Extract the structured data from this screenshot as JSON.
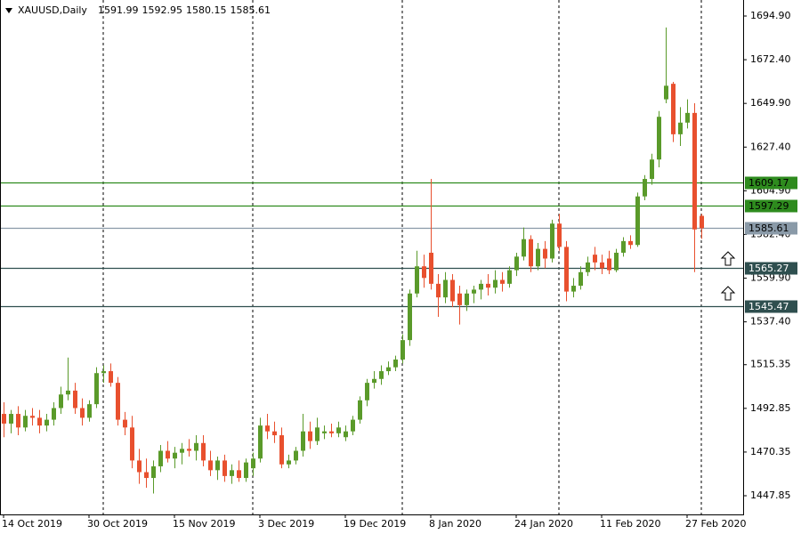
{
  "chart_data": {
    "type": "candlestick",
    "title": "XAUUSD,Daily",
    "up_color": "#5a9a2a",
    "down_color": "#e8502e",
    "grid": false,
    "ylim": [
      1438.23,
      1703.15
    ],
    "yticks": [
      {
        "value": 1694.9,
        "label": "1694.90"
      },
      {
        "value": 1672.4,
        "label": "1672.40"
      },
      {
        "value": 1649.9,
        "label": "1649.90"
      },
      {
        "value": 1627.4,
        "label": "1627.40"
      },
      {
        "value": 1604.9,
        "label": "1604.90"
      },
      {
        "value": 1582.4,
        "label": "1582.40"
      },
      {
        "value": 1559.9,
        "label": "1559.90"
      },
      {
        "value": 1537.4,
        "label": "1537.40"
      },
      1515.35,
      1492.85,
      1470.35,
      1447.85
    ],
    "levels": [
      {
        "value": 1609.17,
        "color": "#2e8b1e",
        "text_color": "#000000"
      },
      {
        "value": 1597.29,
        "color": "#2e8b1e",
        "text_color": "#000000"
      },
      {
        "value": 1585.61,
        "color": "#8a9aa8",
        "text_color": "#000000"
      },
      {
        "value": 1565.27,
        "color": "#2f4f4f",
        "text_color": "#ffffff"
      },
      {
        "value": 1545.47,
        "color": "#2f4f4f",
        "text_color": "#ffffff"
      }
    ],
    "categories": [
      "14 Oct 2019",
      null,
      null,
      null,
      null,
      null,
      null,
      null,
      null,
      null,
      null,
      null,
      "30 Oct 2019",
      null,
      null,
      null,
      null,
      null,
      null,
      null,
      null,
      null,
      null,
      null,
      "15 Nov 2019",
      null,
      null,
      null,
      null,
      null,
      null,
      null,
      null,
      null,
      null,
      null,
      "3 Dec 2019",
      null,
      null,
      null,
      null,
      null,
      null,
      null,
      null,
      null,
      null,
      null,
      "19 Dec 2019",
      null,
      null,
      null,
      null,
      null,
      null,
      null,
      null,
      null,
      null,
      null,
      "8 Jan 2020",
      null,
      null,
      null,
      null,
      null,
      null,
      null,
      null,
      null,
      null,
      null,
      "24 Jan 2020",
      null,
      null,
      null,
      null,
      null,
      null,
      null,
      null,
      null,
      null,
      null,
      "11 Feb 2020",
      null,
      null,
      null,
      null,
      null,
      null,
      null,
      null,
      null,
      null,
      null,
      "27 Feb 2020",
      null,
      null
    ],
    "open": [
      1490,
      1485,
      1490,
      1483,
      1489,
      1488,
      1484,
      1487,
      1493,
      1500,
      1502,
      1493,
      1488,
      1495,
      1511,
      1512,
      1506,
      1487,
      1483,
      1466,
      1460,
      1457,
      1463,
      1471,
      1467,
      1470,
      1472,
      1471,
      1475,
      1466,
      1461,
      1466,
      1458,
      1461,
      1457,
      1462,
      1467,
      1484,
      1481,
      1479,
      1464,
      1466,
      1471,
      1481,
      1476,
      1480,
      1481,
      1480,
      1478,
      1481,
      1487,
      1497,
      1506,
      1508,
      1512,
      1514,
      1518,
      1528,
      1552,
      1566,
      1573,
      1557,
      1550,
      1559,
      1552,
      1546,
      1552,
      1554,
      1557,
      1555,
      1559,
      1557,
      1564,
      1571,
      1580,
      1566,
      1575,
      1570,
      1588,
      1576,
      1553,
      1556,
      1563,
      1572,
      1568,
      1570,
      1564,
      1573,
      1579,
      1577,
      1602,
      1611,
      1621,
      1652,
      1660,
      1634,
      1640,
      1645,
      1591.99
    ],
    "high": [
      1496,
      1492,
      1494,
      1492,
      1493,
      1492,
      1490,
      1496,
      1504,
      1519,
      1506,
      1498,
      1497,
      1514,
      1515,
      1516,
      1509,
      1491,
      1489,
      1472,
      1467,
      1466,
      1474,
      1476,
      1473,
      1475,
      1477,
      1479,
      1479,
      1471,
      1468,
      1469,
      1464,
      1466,
      1467,
      1470,
      1488,
      1490,
      1486,
      1483,
      1469,
      1473,
      1490,
      1486,
      1488,
      1484,
      1485,
      1486,
      1484,
      1489,
      1499,
      1508,
      1512,
      1515,
      1517,
      1520,
      1531,
      1554,
      1574,
      1572,
      1611,
      1562,
      1563,
      1562,
      1556,
      1554,
      1556,
      1559,
      1562,
      1564,
      1563,
      1566,
      1573,
      1586,
      1582,
      1578,
      1579,
      1590,
      1593,
      1579,
      1560,
      1566,
      1571,
      1576,
      1572,
      1574,
      1575,
      1581,
      1582,
      1604,
      1613,
      1624,
      1646,
      1689,
      1661,
      1648,
      1652,
      1650,
      1592.95
    ],
    "low": [
      1478,
      1480,
      1479,
      1481,
      1484,
      1480,
      1481,
      1484,
      1490,
      1497,
      1490,
      1484,
      1486,
      1493,
      1506,
      1504,
      1484,
      1479,
      1462,
      1454,
      1452,
      1449,
      1460,
      1465,
      1462,
      1464,
      1468,
      1466,
      1463,
      1458,
      1456,
      1455,
      1454,
      1455,
      1455,
      1458,
      1465,
      1477,
      1475,
      1462,
      1462,
      1464,
      1468,
      1472,
      1474,
      1477,
      1478,
      1478,
      1476,
      1479,
      1485,
      1494,
      1503,
      1505,
      1510,
      1512,
      1516,
      1525,
      1550,
      1555,
      1554,
      1540,
      1547,
      1545,
      1536,
      1543,
      1547,
      1549,
      1551,
      1552,
      1553,
      1555,
      1561,
      1569,
      1563,
      1564,
      1565,
      1568,
      1574,
      1548,
      1550,
      1554,
      1561,
      1564,
      1562,
      1562,
      1563,
      1571,
      1575,
      1576,
      1600,
      1608,
      1617,
      1650,
      1630,
      1628,
      1637,
      1563,
      1580.15
    ],
    "close": [
      1485,
      1490,
      1483,
      1489,
      1488,
      1484,
      1487,
      1493,
      1500,
      1502,
      1493,
      1488,
      1495,
      1511,
      1512,
      1506,
      1487,
      1483,
      1466,
      1460,
      1457,
      1463,
      1471,
      1467,
      1470,
      1472,
      1471,
      1475,
      1466,
      1461,
      1466,
      1458,
      1461,
      1457,
      1465,
      1467,
      1484,
      1481,
      1479,
      1464,
      1466,
      1471,
      1481,
      1476,
      1483,
      1481,
      1480,
      1483,
      1481,
      1487,
      1497,
      1506,
      1508,
      1512,
      1514,
      1518,
      1528,
      1552,
      1566,
      1560,
      1557,
      1550,
      1559,
      1548,
      1546,
      1552,
      1554,
      1557,
      1555,
      1559,
      1557,
      1564,
      1571,
      1580,
      1566,
      1575,
      1570,
      1588,
      1576,
      1553,
      1556,
      1563,
      1568,
      1568,
      1565,
      1564,
      1573,
      1579,
      1577,
      1602,
      1611,
      1621,
      1643,
      1659,
      1634,
      1640,
      1645,
      1585,
      1585.61
    ]
  }
}
